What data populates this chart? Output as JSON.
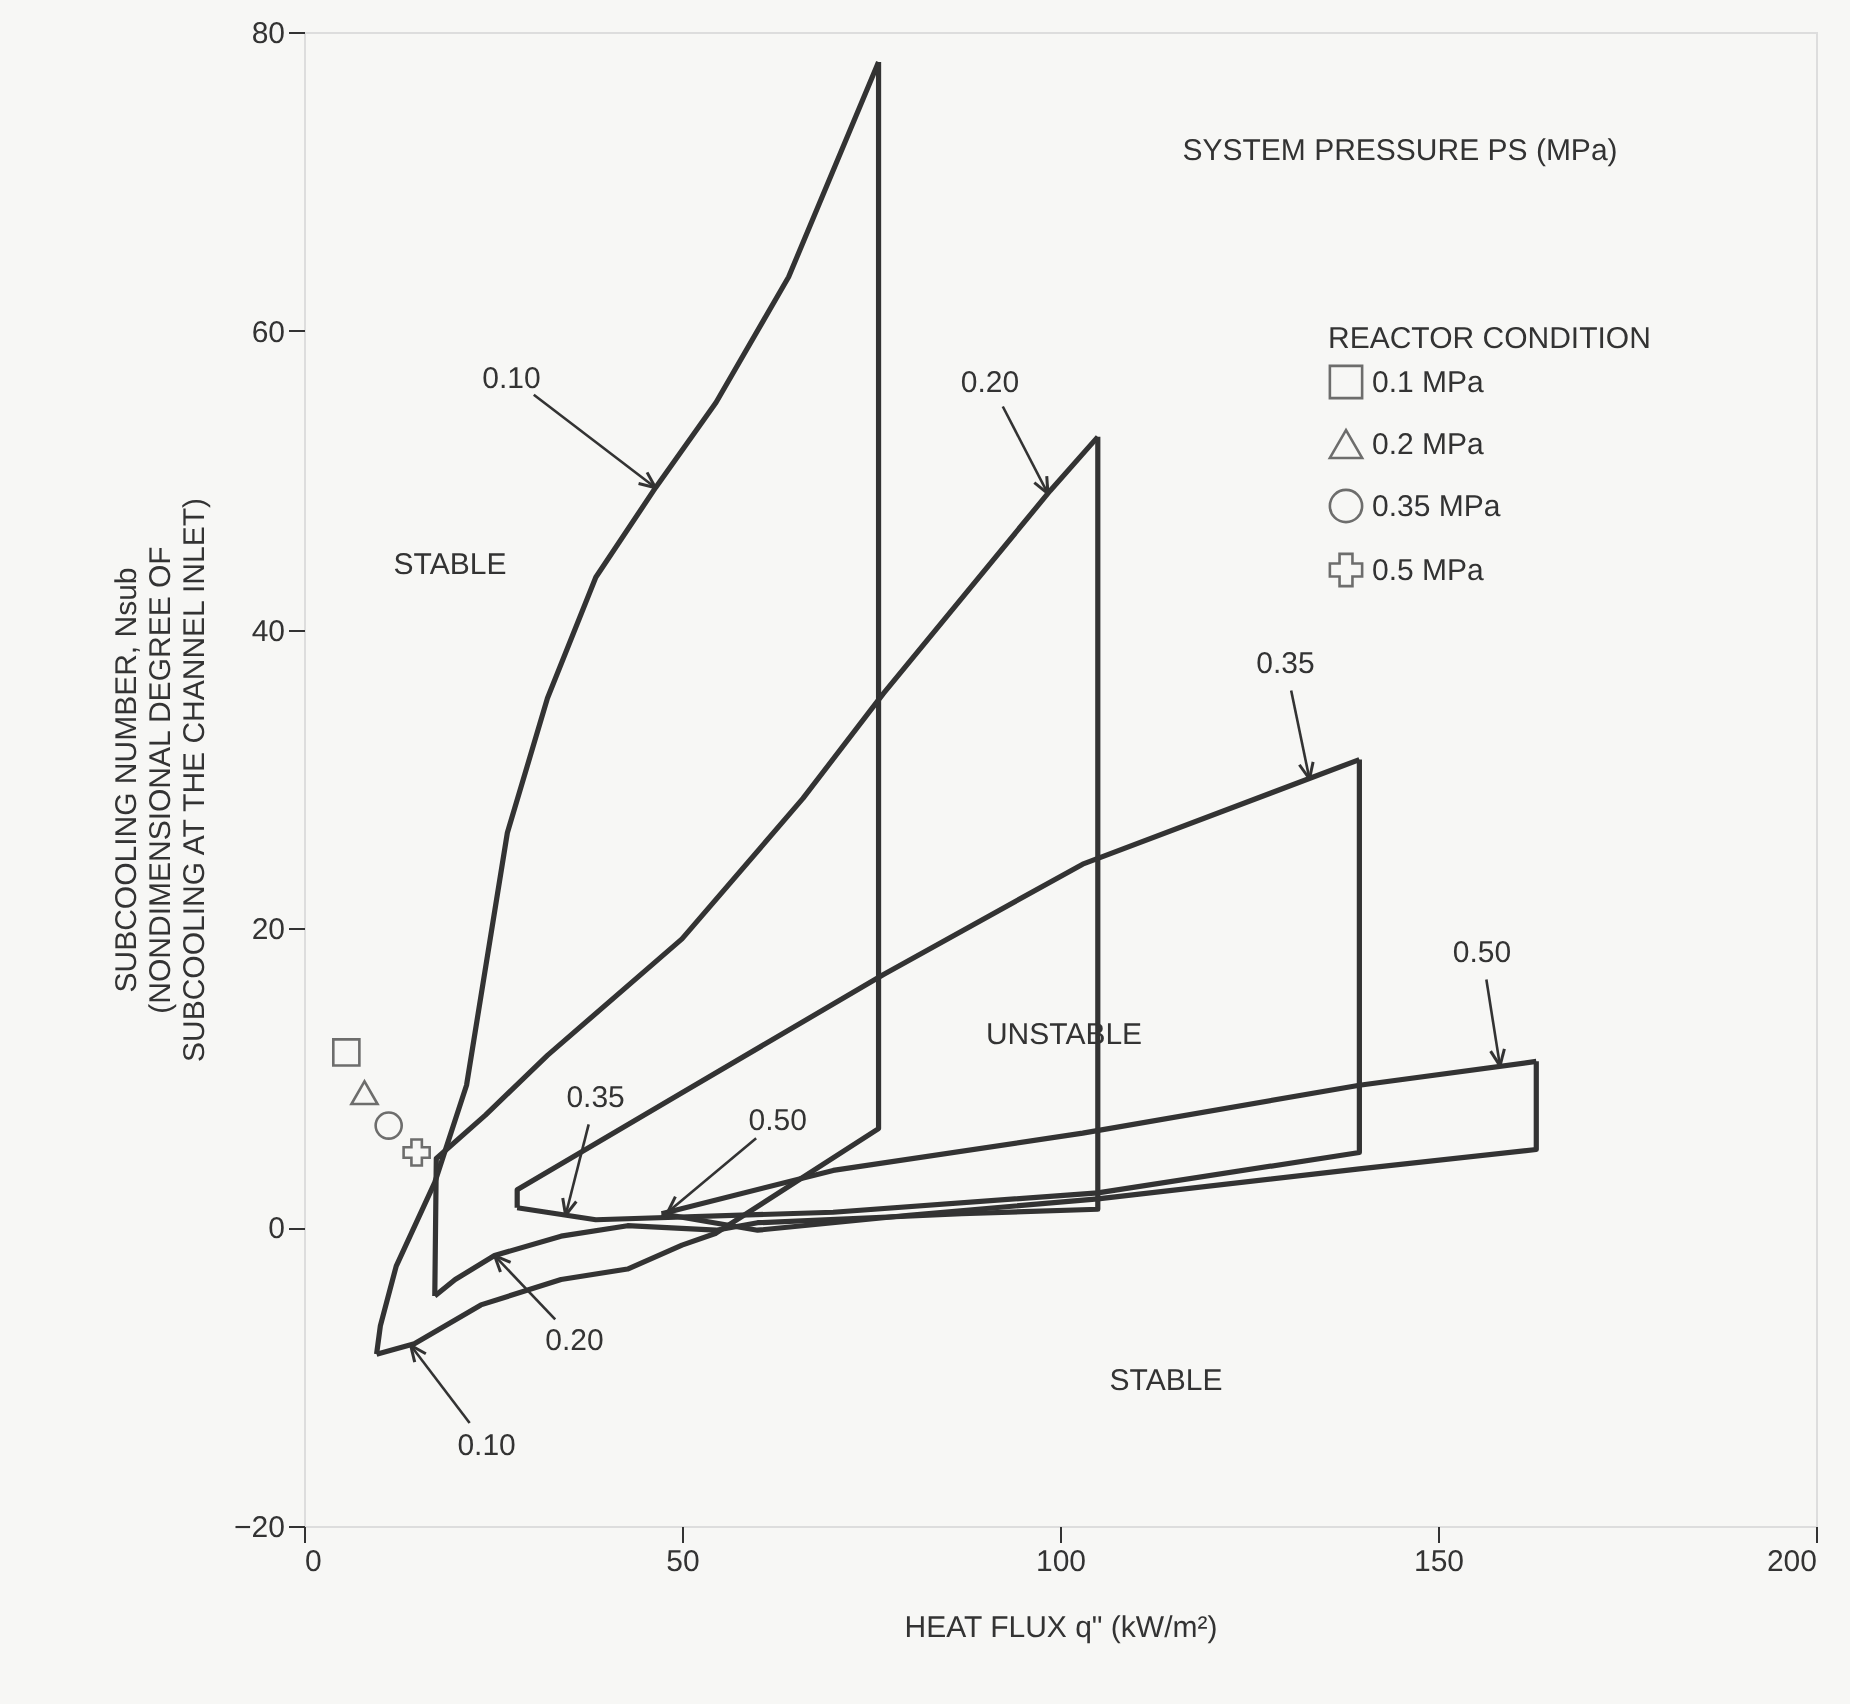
{
  "chart_data": {
    "type": "line",
    "xlabel": "HEAT FLUX q\" (kW/m²)",
    "ylabel": "SUBCOOLING NUMBER, Nsub\n(NONDIMENSIONAL DEGREE OF\nSUBCOOLING AT THE CHANNEL INLET)",
    "legend_title": "REACTOR CONDITION",
    "xlim": [
      0,
      200
    ],
    "xticks": [
      0,
      50,
      100,
      150,
      200
    ],
    "ylim": [
      -20,
      80
    ],
    "yticks": [
      -20,
      0,
      20,
      40,
      60,
      80
    ],
    "grid": false,
    "legend": "top right",
    "line_style": "solid",
    "series": [
      {
        "type": "line",
        "color": "#333333",
        "marker": "none",
        "x": [
          9.6,
          10.1,
          12.2,
          17.3,
          21.5,
          26.9,
          32.2,
          38.6,
          46.5,
          54.5,
          64.1,
          76
        ],
        "values": [
          -8.5,
          -6.6,
          -2.6,
          3,
          9.5,
          26.4,
          35.4,
          43.5,
          49.5,
          55.2,
          63.6,
          78
        ]
      },
      {
        "type": "line",
        "color": "#333333",
        "marker": "none",
        "x": [
          9.6,
          14.6,
          23.4,
          34,
          42.8,
          50,
          54.5,
          76,
          76
        ],
        "values": [
          -8.5,
          -7.8,
          -5.2,
          -3.5,
          -2.8,
          -1.2,
          -0.4,
          6.6,
          78
        ]
      },
      {
        "type": "line",
        "color": "#333333",
        "marker": "none",
        "x": [
          17.3,
          17.5,
          24,
          32.2,
          50,
          66,
          76.6,
          98.7,
          105
        ],
        "values": [
          -4.6,
          4.6,
          7.5,
          11.5,
          19.3,
          28.7,
          35.7,
          49.3,
          52.9
        ]
      },
      {
        "type": "line",
        "color": "#333333",
        "marker": "none",
        "x": [
          17.3,
          20,
          25.2,
          34,
          42.8,
          54.5,
          60,
          87,
          105,
          105
        ],
        "values": [
          -4.6,
          -3.5,
          -1.9,
          -0.6,
          0.1,
          -0.2,
          0.3,
          0.9,
          1.2,
          52.9
        ]
      },
      {
        "type": "line",
        "color": "#333333",
        "marker": "none",
        "x": [
          28.2,
          28.2,
          50,
          76.6,
          103,
          139.6
        ],
        "values": [
          1.3,
          2.5,
          9,
          16.9,
          24.3,
          31.3
        ]
      },
      {
        "type": "line",
        "color": "#333333",
        "marker": "none",
        "x": [
          28.2,
          38.6,
          70,
          105,
          139.6,
          139.6
        ],
        "values": [
          1.3,
          0.5,
          1,
          2.3,
          5,
          31.3
        ]
      },
      {
        "type": "line",
        "color": "#333333",
        "marker": "none",
        "x": [
          47.3,
          70,
          103,
          139.6,
          163
        ],
        "values": [
          0.9,
          3.8,
          6.3,
          9.5,
          11.1
        ]
      },
      {
        "type": "line",
        "color": "#333333",
        "marker": "none",
        "x": [
          47.3,
          60,
          80,
          105,
          139.6,
          163,
          163
        ],
        "values": [
          0.9,
          -0.2,
          0.8,
          1.9,
          3.9,
          5.2,
          11.1
        ]
      },
      {
        "type": "scatter",
        "name": "0.1 MPa",
        "color": "#333333",
        "marker": "square",
        "x": [
          5.6
        ],
        "values": [
          11.7
        ]
      },
      {
        "type": "scatter",
        "name": "0.2 MPa",
        "color": "#333333",
        "marker": "triangle",
        "x": [
          8
        ],
        "values": [
          9
        ]
      },
      {
        "type": "scatter",
        "name": "0.35 MPa",
        "color": "#333333",
        "marker": "circle",
        "x": [
          11.2
        ],
        "values": [
          6.8
        ]
      },
      {
        "type": "scatter",
        "name": "0.5 MPa",
        "color": "#333333",
        "marker": "cross",
        "x": [
          14.9
        ],
        "values": [
          5
        ]
      }
    ],
    "annotations": [
      "SYSTEM PRESSURE PS (MPa)",
      "STABLE",
      "UNSTABLE",
      "STABLE",
      {
        "text": "0.10",
        "x": 46.5,
        "y": 49.5
      },
      {
        "text": "0.20",
        "x": 98.4,
        "y": 49.1
      },
      {
        "text": "0.35",
        "x": 133,
        "y": 30
      },
      {
        "text": "0.50",
        "x": 158.2,
        "y": 10.8
      },
      {
        "text": "0.35",
        "x": 34.6,
        "y": 0.8
      },
      {
        "text": "0.50",
        "x": 48.1,
        "y": 1
      },
      {
        "text": "0.20",
        "x": 25.2,
        "y": -1.9
      },
      {
        "text": "0.10",
        "x": 14.1,
        "y": -7.9
      }
    ]
  }
}
